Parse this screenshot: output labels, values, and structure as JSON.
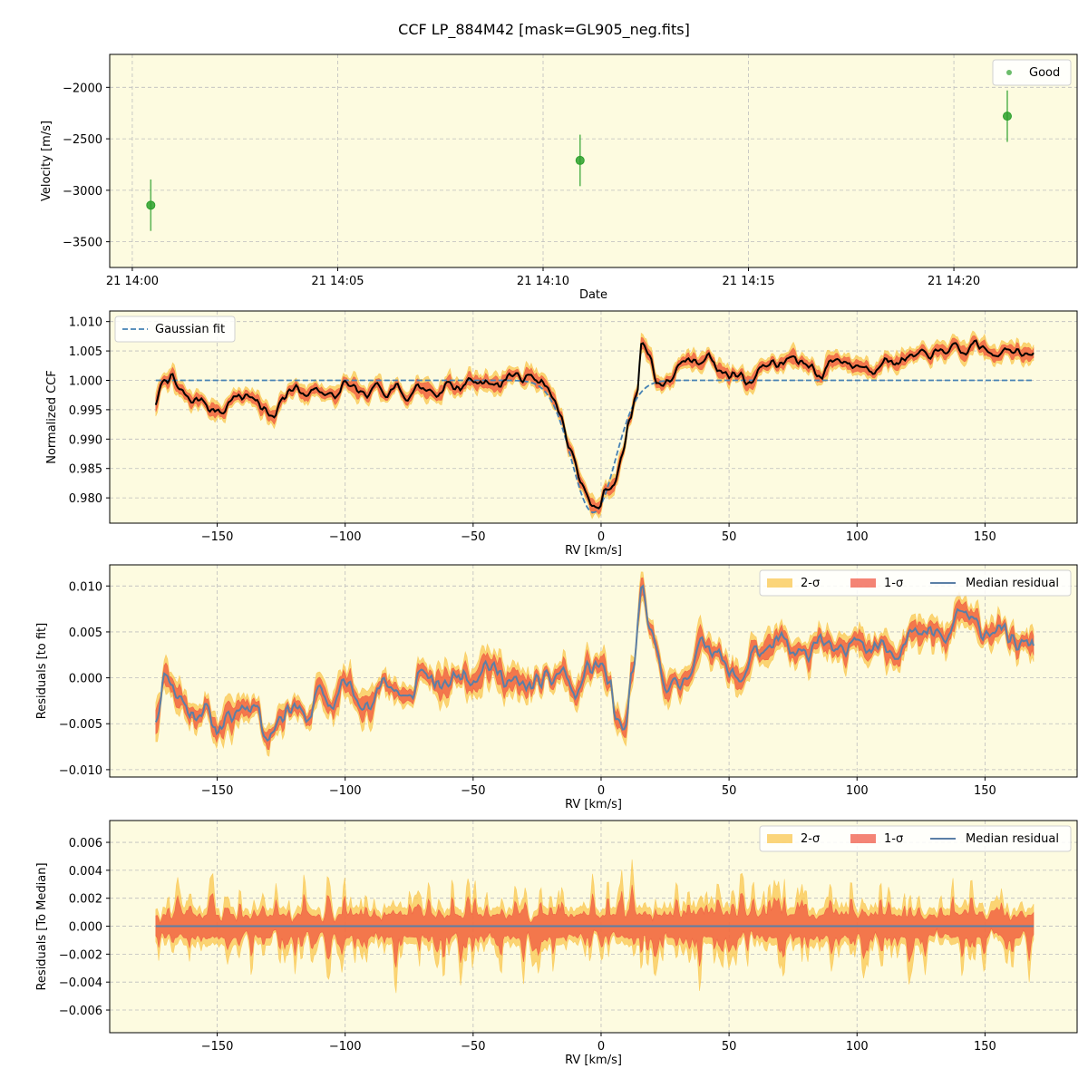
{
  "figure": {
    "title": "CCF LP_884M42 [mask=GL905_neg.fits]",
    "background": "#ffffff",
    "panel_background": "#fdfbe0"
  },
  "colors": {
    "good": "#2ca02c",
    "gaussian": "#4682b4",
    "ccf": "#000000",
    "sigma2": "#f9c74f",
    "sigma1": "#f0503c",
    "median": "#5b7fa6",
    "grid": "#bdbdbd"
  },
  "chart_data": [
    {
      "type": "scatter",
      "xlabel": "Date",
      "ylabel": "Velocity [m/s]",
      "x_ticks": [
        "21 14:00",
        "21 14:05",
        "21 14:10",
        "21 14:15",
        "21 14:20"
      ],
      "x_tick_minutes": [
        0,
        5,
        10,
        15,
        20
      ],
      "xlim_minutes": [
        -0.55,
        23.0
      ],
      "ylim": [
        -3750,
        -1680
      ],
      "y_ticks": [
        -3500,
        -3000,
        -2500,
        -2000
      ],
      "y_tick_labels": [
        "−3500",
        "−3000",
        "−2500",
        "−2000"
      ],
      "legend": {
        "position": "top-right",
        "entries": [
          "Good"
        ]
      },
      "series": [
        {
          "name": "Good",
          "x_minutes": [
            0.45,
            10.9,
            21.3
          ],
          "y": [
            -3145,
            -2710,
            -2280
          ],
          "yerr": [
            250,
            250,
            250
          ]
        }
      ]
    },
    {
      "type": "line",
      "xlabel": "RV [km/s]",
      "ylabel": "Normalized CCF",
      "xlim": [
        -192,
        186
      ],
      "ylim": [
        0.9757,
        1.0118
      ],
      "x_ticks": [
        -150,
        -100,
        -50,
        0,
        50,
        100,
        150
      ],
      "x_tick_labels": [
        "−150",
        "−100",
        "−50",
        "0",
        "50",
        "100",
        "150"
      ],
      "y_ticks": [
        0.98,
        0.985,
        0.99,
        0.995,
        1.0,
        1.005,
        1.01
      ],
      "y_tick_labels": [
        "0.980",
        "0.985",
        "0.990",
        "0.995",
        "1.000",
        "1.005",
        "1.010"
      ],
      "legend": {
        "position": "top-left",
        "entries": [
          "Gaussian fit"
        ]
      },
      "gaussian": {
        "baseline": 1.0,
        "depth": 0.0225,
        "center": -3.0,
        "sigma": 8.5
      },
      "ccf_anchors": {
        "rv": [
          -174,
          -171,
          -168,
          -164,
          -160,
          -156,
          -152,
          -148,
          -144,
          -140,
          -136,
          -132,
          -128,
          -124,
          -120,
          -116,
          -112,
          -108,
          -104,
          -100,
          -96,
          -92,
          -88,
          -84,
          -80,
          -76,
          -72,
          -68,
          -64,
          -60,
          -56,
          -52,
          -48,
          -44,
          -40,
          -36,
          -32,
          -28,
          -24,
          -20,
          -16,
          -12,
          -8,
          -4,
          -1,
          2,
          5,
          8,
          11,
          14,
          16,
          19,
          22,
          26,
          30,
          34,
          38,
          42,
          46,
          50,
          54,
          58,
          62,
          66,
          70,
          74,
          78,
          82,
          86,
          90,
          94,
          98,
          102,
          106,
          110,
          114,
          118,
          122,
          126,
          130,
          134,
          138,
          142,
          146,
          150,
          154,
          158,
          162,
          166,
          169
        ],
        "value": [
          0.996,
          1.0,
          1.0005,
          0.998,
          0.9965,
          0.9968,
          0.995,
          0.9945,
          0.997,
          0.9972,
          0.9975,
          0.995,
          0.9935,
          0.997,
          0.999,
          0.9975,
          0.9985,
          0.998,
          0.997,
          0.9995,
          0.9985,
          0.997,
          0.999,
          0.998,
          0.9992,
          0.9968,
          0.999,
          0.9985,
          0.9975,
          0.9995,
          0.9985,
          1.0,
          0.9995,
          1.0,
          0.999,
          1.001,
          1.0005,
          1.0005,
          1.0,
          0.998,
          0.994,
          0.988,
          0.983,
          0.979,
          0.978,
          0.9815,
          0.9825,
          0.9865,
          0.993,
          0.998,
          1.007,
          1.004,
          0.9995,
          0.9995,
          1.002,
          1.0035,
          1.003,
          1.0045,
          1.0015,
          1.001,
          1.001,
          0.9995,
          1.002,
          1.003,
          1.0025,
          1.004,
          1.003,
          1.0025,
          1.0005,
          1.0035,
          1.0035,
          1.0025,
          1.0025,
          1.0015,
          1.0035,
          1.003,
          1.0035,
          1.004,
          1.0045,
          1.0045,
          1.005,
          1.0055,
          1.0045,
          1.0065,
          1.005,
          1.0045,
          1.0055,
          1.005,
          1.004,
          1.0045
        ]
      }
    },
    {
      "type": "area",
      "xlabel": "RV [km/s]",
      "ylabel": "Residuals [to fit]",
      "xlim": [
        -192,
        186
      ],
      "ylim": [
        -0.0108,
        0.0123
      ],
      "x_ticks": [
        -150,
        -100,
        -50,
        0,
        50,
        100,
        150
      ],
      "x_tick_labels": [
        "−150",
        "−100",
        "−50",
        "0",
        "50",
        "100",
        "150"
      ],
      "y_ticks": [
        -0.01,
        -0.005,
        0.0,
        0.005,
        0.01
      ],
      "y_tick_labels": [
        "−0.010",
        "−0.005",
        "0.000",
        "0.005",
        "0.010"
      ],
      "legend": {
        "position": "top-right",
        "entries": [
          "2-σ",
          "1-σ",
          "Median residual"
        ]
      },
      "residual_anchors": {
        "rv": [
          -174,
          -170,
          -165,
          -160,
          -155,
          -150,
          -145,
          -140,
          -135,
          -130,
          -125,
          -120,
          -115,
          -110,
          -105,
          -100,
          -95,
          -90,
          -85,
          -80,
          -75,
          -70,
          -65,
          -60,
          -55,
          -50,
          -45,
          -40,
          -35,
          -30,
          -25,
          -20,
          -15,
          -10,
          -5,
          0,
          3,
          6,
          9,
          12,
          16,
          20,
          25,
          30,
          35,
          40,
          45,
          50,
          55,
          60,
          65,
          70,
          75,
          80,
          85,
          90,
          95,
          100,
          105,
          110,
          115,
          120,
          125,
          130,
          135,
          140,
          145,
          150,
          155,
          160,
          165,
          169
        ],
        "value": [
          -0.0042,
          0.0005,
          -0.002,
          -0.004,
          -0.0035,
          -0.0055,
          -0.0045,
          -0.003,
          -0.003,
          -0.0065,
          -0.004,
          -0.003,
          -0.0045,
          -0.0015,
          -0.003,
          -0.0005,
          -0.002,
          -0.0035,
          0.0,
          -0.0015,
          -0.0025,
          0.001,
          -0.001,
          -0.0005,
          0.0005,
          0.0,
          0.0015,
          0.0005,
          -0.0005,
          -0.001,
          -0.0005,
          -0.0003,
          0.0008,
          -0.002,
          0.001,
          0.0015,
          -0.0005,
          -0.005,
          -0.006,
          0.0,
          0.0095,
          0.004,
          -0.0005,
          -0.001,
          0.001,
          0.004,
          0.003,
          0.0005,
          0.0,
          0.003,
          0.0025,
          0.0045,
          0.0025,
          0.0025,
          0.0045,
          0.003,
          0.0025,
          0.005,
          0.003,
          0.004,
          0.0025,
          0.005,
          0.0045,
          0.005,
          0.004,
          0.0075,
          0.006,
          0.005,
          0.0055,
          0.004,
          0.0035,
          0.004
        ]
      }
    },
    {
      "type": "area",
      "xlabel": "RV [km/s]",
      "ylabel": "Residuals [To Median]",
      "xlim": [
        -192,
        186
      ],
      "ylim": [
        -0.00762,
        0.00756
      ],
      "x_ticks": [
        -150,
        -100,
        -50,
        0,
        50,
        100,
        150
      ],
      "x_tick_labels": [
        "−150",
        "−100",
        "−50",
        "0",
        "50",
        "100",
        "150"
      ],
      "y_ticks": [
        -0.006,
        -0.004,
        -0.002,
        0.0,
        0.002,
        0.004,
        0.006
      ],
      "y_tick_labels": [
        "−0.006",
        "−0.004",
        "−0.002",
        "0.000",
        "0.002",
        "0.004",
        "0.006"
      ],
      "legend": {
        "position": "top-right",
        "entries": [
          "2-σ",
          "1-σ",
          "Median residual"
        ]
      },
      "rv_range": [
        -174,
        169
      ],
      "band_scale": 0.0065
    }
  ]
}
